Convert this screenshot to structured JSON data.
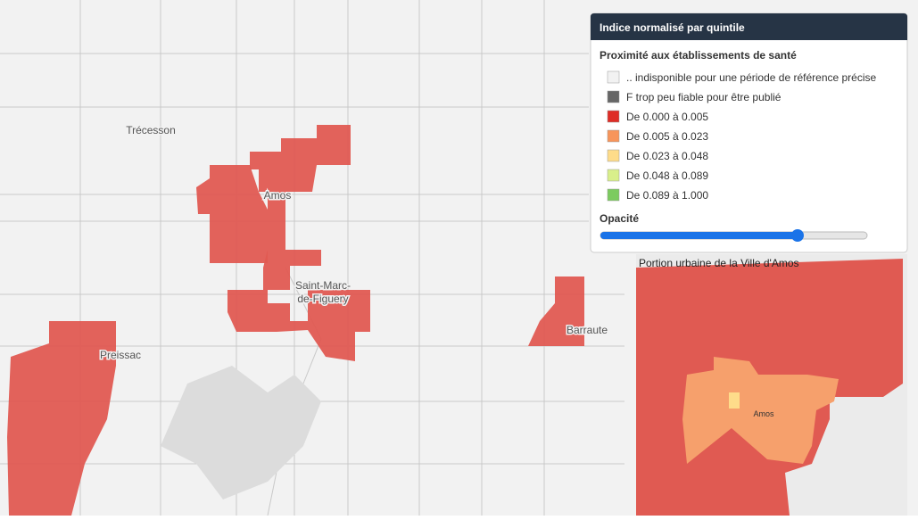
{
  "map": {
    "places": {
      "trecesson": "Trécesson",
      "amos": "Amos",
      "saint_marc": [
        "Saint-Marc-",
        "de-Figuery"
      ],
      "preissac": "Preissac",
      "barraute": "Barraute"
    },
    "inset": {
      "title": "Portion urbaine de la Ville d'Amos",
      "place": "Amos"
    }
  },
  "legend": {
    "title": "Indice normalisé par quintile",
    "subtitle": "Proximité aux établissements de santé",
    "items": [
      {
        "label": ".. indisponible pour une période de référence précise",
        "color": "#f2f2f2"
      },
      {
        "label": "F trop peu fiable pour être publié",
        "color": "#666666"
      },
      {
        "label": "De 0.000 à 0.005",
        "color": "#de2d26"
      },
      {
        "label": "De 0.005 à 0.023",
        "color": "#f7955b"
      },
      {
        "label": "De 0.023 à 0.048",
        "color": "#fedc8a"
      },
      {
        "label": "De 0.048 à 0.089",
        "color": "#d9ef8b"
      },
      {
        "label": "De 0.089 à 1.000",
        "color": "#7ccb5f"
      }
    ],
    "opacity_label": "Opacité"
  }
}
